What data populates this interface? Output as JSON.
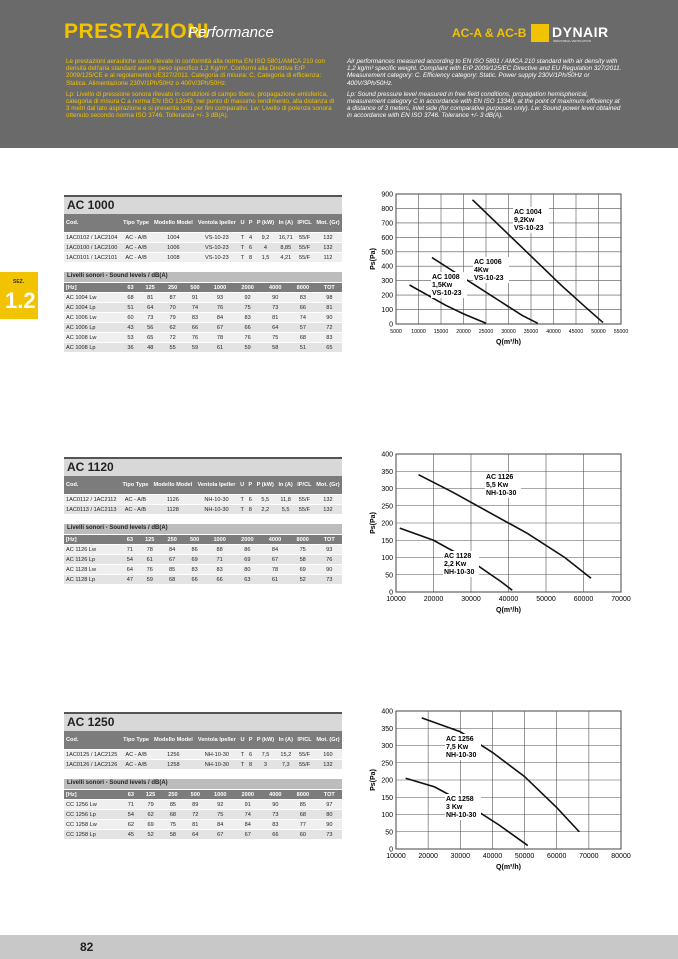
{
  "header": {
    "title": "PRESTAZIONI",
    "subtitle": "Performance",
    "models": "AC-A & AC-B",
    "brand": "DYNAIR",
    "brand_tagline": "INDUSTRIAL VENTILATION"
  },
  "intro": {
    "it": [
      "Le prestazioni aerauliche sono rilevate in conformità alla norma EN ISO 5801/AMCA 210 con densità dell'aria standard avente peso specifico 1,2 Kg/m³. Conformi alla Direttiva ErP 2009/125/CE e al regolamento UE327/2011. Categoria di misura: C, Categoria di efficienza: Statica. Alimentazione 230V/1Ph/50Hz o 400V/3Ph/50Hz.",
      "Lp: Livello di pressione sonora rilevato in condizioni di campo libero, propagazione emisferica, categoria di misura C a norma EN ISO 13349, nel punto di massimo rendimento, alla distanza di 3 metri dal lato aspirazione e si presenta solo per fini comparativi. Lw: Livello di potenza sonora ottenuto secondo norma ISO 3746. Tolleranza +/- 3 dB(A)."
    ],
    "en": [
      "Air performances measured according to EN ISO 5801 / AMCA 210 standard with air density with 1,2 kg/m³ specific weight. Compliant with ErP 2009/125/EC Directive and EU Regulation 327/2011. Measurement category: C. Efficiency category: Static. Power supply 230V/1Ph/50Hz or 400V/3Ph/50Hz.",
      "Lp: Sound pressure level measured in free field conditions, propagation hemispherical, measurement category C in accordance with EN ISO 13349, at the point of maximum efficiency at a distance of 3 meters, inlet side (for comparative purposes only). Lw: Sound power level obtained in accordance with EN ISO 3746. Tolerance +/- 3 dB(A)."
    ]
  },
  "side_tab": {
    "label": "SEZ.",
    "number": "1.2"
  },
  "table_headers": [
    "Cod.",
    "Tipo Type",
    "Modello Model",
    "Ventola Ipeller",
    "U",
    "P",
    "P (kW)",
    "In (A)",
    "IP/CL",
    "Mot. (Gr)"
  ],
  "sound_label": "Livelli sonori - Sound levels / dB(A)",
  "sound_headers": [
    "[Hz]",
    "63",
    "125",
    "250",
    "500",
    "1000",
    "2000",
    "4000",
    "8000",
    "TOT"
  ],
  "sections": [
    {
      "title": "AC 1000",
      "rows": [
        [
          "1AC0102 / 1AC2104",
          "AC - A/B",
          "1004",
          "VS-10-23",
          "T",
          "4",
          "9,2",
          "16,71",
          "55/F",
          "132"
        ],
        [
          "1AC0100 / 1AC2100",
          "AC - A/B",
          "1006",
          "VS-10-23",
          "T",
          "6",
          "4",
          "8,85",
          "55/F",
          "132"
        ],
        [
          "1AC0101 / 1AC2101",
          "AC - A/B",
          "1008",
          "VS-10-23",
          "T",
          "8",
          "1,5",
          "4,21",
          "55/F",
          "112"
        ]
      ],
      "sound": [
        [
          "AC 1004 Lw",
          "68",
          "81",
          "87",
          "91",
          "93",
          "92",
          "90",
          "83",
          "98"
        ],
        [
          "AC 1004 Lp",
          "51",
          "64",
          "70",
          "74",
          "76",
          "75",
          "73",
          "66",
          "81"
        ],
        [
          "AC 1006 Lw",
          "60",
          "73",
          "79",
          "83",
          "84",
          "83",
          "81",
          "74",
          "90"
        ],
        [
          "AC 1006 Lp",
          "43",
          "56",
          "62",
          "66",
          "67",
          "66",
          "64",
          "57",
          "72"
        ],
        [
          "AC 1008 Lw",
          "53",
          "65",
          "72",
          "76",
          "78",
          "76",
          "75",
          "68",
          "83"
        ],
        [
          "AC 1008 Lp",
          "36",
          "48",
          "55",
          "59",
          "61",
          "59",
          "58",
          "51",
          "65"
        ]
      ]
    },
    {
      "title": "AC 1120",
      "rows": [
        [
          "1AC0112 / 1AC2112",
          "AC - A/B",
          "1126",
          "NH-10-30",
          "T",
          "6",
          "5,5",
          "11,8",
          "55/F",
          "132"
        ],
        [
          "1AC0113 / 1AC2113",
          "AC - A/B",
          "1128",
          "NH-10-30",
          "T",
          "8",
          "2,2",
          "5,5",
          "55/F",
          "132"
        ]
      ],
      "sound": [
        [
          "AC 1126 Lw",
          "71",
          "78",
          "84",
          "86",
          "88",
          "86",
          "84",
          "75",
          "93"
        ],
        [
          "AC 1126 Lp",
          "54",
          "61",
          "67",
          "69",
          "71",
          "69",
          "67",
          "58",
          "76"
        ],
        [
          "AC 1128 Lw",
          "64",
          "76",
          "85",
          "83",
          "83",
          "80",
          "78",
          "69",
          "90"
        ],
        [
          "AC 1128 Lp",
          "47",
          "59",
          "68",
          "66",
          "66",
          "63",
          "61",
          "52",
          "73"
        ]
      ]
    },
    {
      "title": "AC 1250",
      "rows": [
        [
          "1AC0125 / 1AC2125",
          "AC - A/B",
          "1256",
          "NH-10-30",
          "T",
          "6",
          "7,5",
          "15,2",
          "55/F",
          "160"
        ],
        [
          "1AC0126 / 1AC2126",
          "AC - A/B",
          "1258",
          "NH-10-30",
          "T",
          "8",
          "3",
          "7,3",
          "55/F",
          "132"
        ]
      ],
      "sound": [
        [
          "CC 1256 Lw",
          "71",
          "79",
          "85",
          "89",
          "92",
          "91",
          "90",
          "85",
          "97"
        ],
        [
          "CC 1256 Lp",
          "54",
          "62",
          "68",
          "72",
          "75",
          "74",
          "73",
          "68",
          "80"
        ],
        [
          "CC 1258 Lw",
          "62",
          "69",
          "75",
          "81",
          "84",
          "84",
          "83",
          "77",
          "90"
        ],
        [
          "CC 1258 Lp",
          "45",
          "52",
          "58",
          "64",
          "67",
          "67",
          "66",
          "60",
          "73"
        ]
      ]
    }
  ],
  "chart_data": [
    {
      "type": "line",
      "xlabel": "Q(m³/h)",
      "ylabel": "Ps(Pa)",
      "xlim": [
        5000,
        55000
      ],
      "ylim": [
        0,
        900
      ],
      "x_ticks": [
        "5000",
        "10000",
        "15000",
        "20000",
        "25000",
        "30000",
        "35000",
        "40000",
        "45000",
        "50000",
        "55000"
      ],
      "y_ticks": [
        "0",
        "100",
        "200",
        "300",
        "400",
        "500",
        "600",
        "700",
        "800",
        "900"
      ],
      "series": [
        {
          "name": "AC 1004 9,2Kw VS-10-23",
          "x": [
            22000,
            27000,
            32000,
            37000,
            42000,
            47000,
            51000
          ],
          "y": [
            860,
            710,
            560,
            410,
            260,
            120,
            10
          ]
        },
        {
          "name": "AC 1006 4Kw VS-10-23",
          "x": [
            13000,
            18000,
            23000,
            28000,
            33000,
            36500
          ],
          "y": [
            460,
            360,
            260,
            160,
            60,
            5
          ]
        },
        {
          "name": "AC 1008 1,5Kw VS-10-23",
          "x": [
            8000,
            12000,
            16000,
            20000,
            25000
          ],
          "y": [
            270,
            200,
            130,
            70,
            5
          ]
        }
      ]
    },
    {
      "type": "line",
      "xlabel": "Q(m³/h)",
      "ylabel": "Ps(Pa)",
      "xlim": [
        10000,
        70000
      ],
      "ylim": [
        0,
        400
      ],
      "x_ticks": [
        "10000",
        "20000",
        "30000",
        "40000",
        "50000",
        "60000",
        "70000"
      ],
      "y_ticks": [
        "0",
        "50",
        "100",
        "150",
        "200",
        "250",
        "300",
        "350",
        "400"
      ],
      "series": [
        {
          "name": "AC 1126 5,5 Kw NH-10-30",
          "x": [
            16000,
            25000,
            35000,
            45000,
            55000,
            62000
          ],
          "y": [
            340,
            290,
            230,
            170,
            100,
            40
          ]
        },
        {
          "name": "AC 1128 2,2 Kw NH-10-30",
          "x": [
            11000,
            20000,
            30000,
            38000,
            41000
          ],
          "y": [
            185,
            150,
            90,
            30,
            5
          ]
        }
      ]
    },
    {
      "type": "line",
      "xlabel": "Q(m³/h)",
      "ylabel": "Ps(Pa)",
      "xlim": [
        10000,
        80000
      ],
      "ylim": [
        0,
        400
      ],
      "x_ticks": [
        "10000",
        "20000",
        "30000",
        "40000",
        "50000",
        "60000",
        "70000",
        "80000"
      ],
      "y_ticks": [
        "0",
        "50",
        "100",
        "150",
        "200",
        "250",
        "300",
        "350",
        "400"
      ],
      "series": [
        {
          "name": "AC 1256 7,5 Kw NH-10-30",
          "x": [
            18000,
            30000,
            40000,
            50000,
            60000,
            67000
          ],
          "y": [
            380,
            340,
            280,
            210,
            120,
            50
          ]
        },
        {
          "name": "AC 1258 3 Kw NH-10-30",
          "x": [
            13000,
            22000,
            32000,
            42000,
            51000
          ],
          "y": [
            205,
            180,
            130,
            70,
            10
          ]
        }
      ]
    }
  ],
  "chart_labels": [
    [
      {
        "lines": [
          "AC 1004",
          "9,2Kw",
          "VS-10-23"
        ]
      },
      {
        "lines": [
          "AC 1006",
          "4Kw",
          "VS-10-23"
        ]
      },
      {
        "lines": [
          "AC 1008",
          "1,5Kw",
          "VS-10-23"
        ]
      }
    ],
    [
      {
        "lines": [
          "AC 1126",
          "5,5 Kw",
          "NH-10-30"
        ]
      },
      {
        "lines": [
          "AC 1128",
          "2,2 Kw",
          "NH-10-30"
        ]
      }
    ],
    [
      {
        "lines": [
          "AC 1256",
          "7,5 Kw",
          "NH-10-30"
        ]
      },
      {
        "lines": [
          "AC 1258",
          "3 Kw",
          "NH-10-30"
        ]
      }
    ]
  ],
  "footer": {
    "page_number": "82"
  }
}
